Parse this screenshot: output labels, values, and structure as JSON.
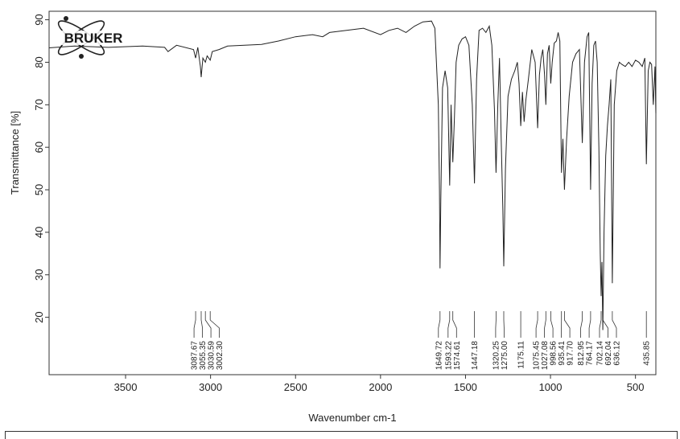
{
  "chart_data": {
    "type": "line",
    "xlabel": "Wavenumber cm-1",
    "ylabel": "Transmittance [%]",
    "xlim": [
      3950,
      380
    ],
    "ylim": [
      6.5,
      92
    ],
    "x_reversed": true,
    "x_ticks": [
      3500,
      3000,
      2500,
      2000,
      1500,
      1000,
      500
    ],
    "y_ticks": [
      20,
      30,
      40,
      50,
      60,
      70,
      80,
      90
    ],
    "logo": "BRUKER",
    "spectrum": {
      "x": [
        3950,
        3800,
        3600,
        3400,
        3270,
        3250,
        3200,
        3100,
        3087.67,
        3075,
        3060,
        3055.35,
        3045,
        3030.59,
        3020,
        3002.3,
        2990,
        2950,
        2900,
        2800,
        2700,
        2600,
        2500,
        2400,
        2340,
        2300,
        2200,
        2100,
        2000,
        1950,
        1900,
        1850,
        1800,
        1750,
        1700,
        1680,
        1660,
        1653,
        1649.72,
        1645,
        1635,
        1620,
        1605,
        1593.22,
        1585,
        1574.61,
        1565,
        1555,
        1540,
        1520,
        1500,
        1480,
        1460,
        1447.18,
        1435,
        1420,
        1400,
        1380,
        1360,
        1345,
        1330,
        1320.25,
        1310,
        1300,
        1290,
        1280,
        1275,
        1265,
        1250,
        1230,
        1210,
        1195,
        1185,
        1175.11,
        1165,
        1155,
        1145,
        1130,
        1110,
        1090,
        1075.45,
        1065,
        1055,
        1045,
        1035,
        1027.08,
        1018,
        1008,
        998.56,
        990,
        978,
        965,
        955,
        945,
        935.41,
        927,
        917.7,
        905,
        890,
        870,
        850,
        830,
        812.95,
        800,
        785,
        775,
        764.17,
        755,
        745,
        735,
        725,
        715,
        707,
        702.14,
        697,
        692.04,
        685,
        675,
        665,
        655,
        645,
        636.12,
        625,
        610,
        595,
        580,
        560,
        540,
        520,
        500,
        480,
        460,
        445,
        435.85,
        425,
        415,
        405,
        395,
        385,
        380
      ],
      "y": [
        83.4,
        83.8,
        83.5,
        83.8,
        83.5,
        82.5,
        84.0,
        83.0,
        81.0,
        83.5,
        79.0,
        76.5,
        81.0,
        80.0,
        81.5,
        80.5,
        82.5,
        83.0,
        83.8,
        84.0,
        84.2,
        85.0,
        86.0,
        86.5,
        86.0,
        87.0,
        87.5,
        88.0,
        86.5,
        87.5,
        88.0,
        87.0,
        88.5,
        89.5,
        89.7,
        88.0,
        70.0,
        50.0,
        31.5,
        48.0,
        74.0,
        78.0,
        74.0,
        51.0,
        70.0,
        56.5,
        67.0,
        80.0,
        84.0,
        85.5,
        86.0,
        84.0,
        70.0,
        51.5,
        76.0,
        87.5,
        88.0,
        87.0,
        88.5,
        84.0,
        69.0,
        54.0,
        70.0,
        81.0,
        62.0,
        45.0,
        32.0,
        55.0,
        72.0,
        76.0,
        78.0,
        80.0,
        75.0,
        65.0,
        73.0,
        66.0,
        71.0,
        76.0,
        83.0,
        80.0,
        64.5,
        77.0,
        81.0,
        83.0,
        77.0,
        70.0,
        82.0,
        84.0,
        75.0,
        80.0,
        84.5,
        85.0,
        87.0,
        85.0,
        54.0,
        62.0,
        50.0,
        62.0,
        72.0,
        80.0,
        82.0,
        83.0,
        61.0,
        80.0,
        86.0,
        87.0,
        50.0,
        75.0,
        84.0,
        85.0,
        80.0,
        60.0,
        35.0,
        25.0,
        33.0,
        17.0,
        40.0,
        58.0,
        65.0,
        70.0,
        76.0,
        28.0,
        70.0,
        78.0,
        80.0,
        79.5,
        79.0,
        80.0,
        79.0,
        80.5,
        80.0,
        79.0,
        81.0,
        56.0,
        78.0,
        80.0,
        79.5,
        70.0,
        79.0,
        68.0
      ]
    },
    "peaks": [
      "3087.67",
      "3055.35",
      "3030.59",
      "3002.30",
      "1649.72",
      "1593.22",
      "1574.61",
      "1447.18",
      "1320.25",
      "1275.00",
      "1175.11",
      "1075.45",
      "1027.08",
      "998.56",
      "935.41",
      "917.70",
      "812.95",
      "764.17",
      "702.14",
      "692.04",
      "636.12",
      "435.85"
    ],
    "peak_positions": [
      3087.67,
      3055.35,
      3030.59,
      3002.3,
      1649.72,
      1593.22,
      1574.61,
      1447.18,
      1320.25,
      1275.0,
      1175.11,
      1075.45,
      1027.08,
      998.56,
      935.41,
      917.7,
      812.95,
      764.17,
      702.14,
      692.04,
      636.12,
      435.85
    ]
  }
}
